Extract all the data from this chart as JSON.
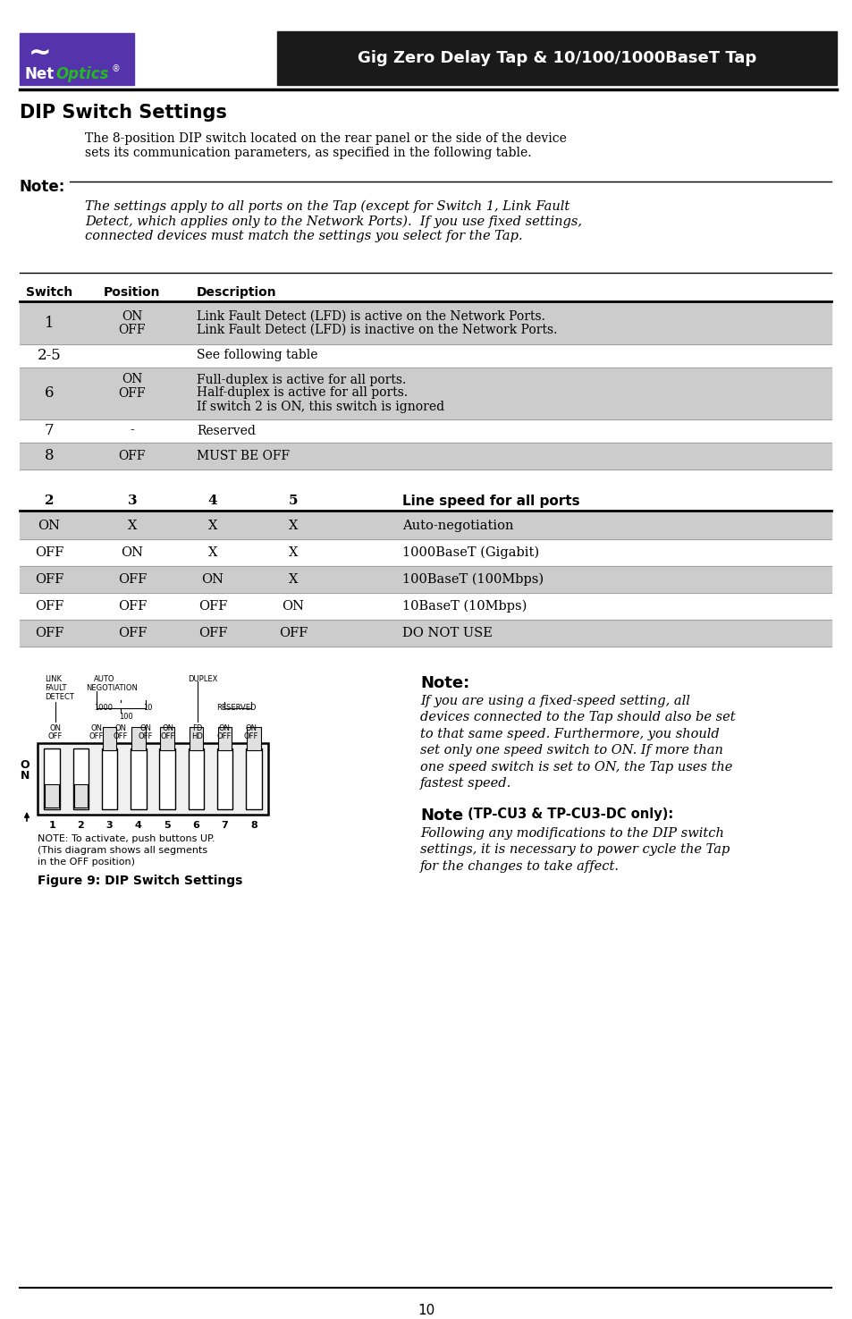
{
  "page_bg": "#ffffff",
  "header_bg": "#1a1a1a",
  "header_text": "Gig Zero Delay Tap & 10/100/1000BaseT Tap",
  "header_text_color": "#ffffff",
  "section_title": "DIP Switch Settings",
  "intro_text": "The 8-position DIP switch located on the rear panel or the side of the device\nsets its communication parameters, as specified in the following table.",
  "note_label": "Note:",
  "note_italic_text": "The settings apply to all ports on the Tap (except for Switch 1, Link Fault\nDetect, which applies only to the Network Ports).  If you use fixed settings,\nconnected devices must match the settings you select for the Tap.",
  "table1_headers": [
    "Switch",
    "Position",
    "Description"
  ],
  "table1_rows": [
    {
      "switch": "1",
      "positions": [
        "ON",
        "OFF"
      ],
      "descriptions": [
        "Link Fault Detect (LFD) is active on the Network Ports.",
        "Link Fault Detect (LFD) is inactive on the Network Ports."
      ],
      "shaded": true
    },
    {
      "switch": "2-5",
      "positions": [
        ""
      ],
      "descriptions": [
        "See following table"
      ],
      "shaded": false
    },
    {
      "switch": "6",
      "positions": [
        "ON",
        "OFF",
        ""
      ],
      "descriptions": [
        "Full-duplex is active for all ports.",
        "Half-duplex is active for all ports.",
        "If switch 2 is ON, this switch is ignored"
      ],
      "shaded": true
    },
    {
      "switch": "7",
      "positions": [
        "-"
      ],
      "descriptions": [
        "Reserved"
      ],
      "shaded": false
    },
    {
      "switch": "8",
      "positions": [
        "OFF"
      ],
      "descriptions": [
        "MUST BE OFF"
      ],
      "shaded": true
    }
  ],
  "table2_headers": [
    "2",
    "3",
    "4",
    "5",
    "Line speed for all ports"
  ],
  "table2_rows": [
    {
      "cols": [
        "ON",
        "X",
        "X",
        "X",
        "Auto-negotiation"
      ],
      "shaded": true
    },
    {
      "cols": [
        "OFF",
        "ON",
        "X",
        "X",
        "1000BaseT (Gigabit)"
      ],
      "shaded": false
    },
    {
      "cols": [
        "OFF",
        "OFF",
        "ON",
        "X",
        "100BaseT (100Mbps)"
      ],
      "shaded": true
    },
    {
      "cols": [
        "OFF",
        "OFF",
        "OFF",
        "ON",
        "10BaseT (10Mbps)"
      ],
      "shaded": false
    },
    {
      "cols": [
        "OFF",
        "OFF",
        "OFF",
        "OFF",
        "DO NOT USE"
      ],
      "shaded": true
    }
  ],
  "note2_label": "Note:",
  "note2_text": "If you are using a fixed-speed setting, all\ndevices connected to the Tap should also be set\nto that same speed. Furthermore, you should\nset only one speed switch to ON. If more than\none speed switch is set to ON, the Tap uses the\nfastest speed.",
  "note3_label": "Note",
  "note3_suffix": " (TP-CU3 & TP-CU3-DC only):",
  "note3_text": "Following any modifications to the DIP switch\nsettings, it is necessary to power cycle the Tap\nfor the changes to take affect.",
  "figure_caption": "Figure 9: DIP Switch Settings",
  "figure_note_line1": "NOTE: To activate, push buttons UP.",
  "figure_note_line2": "(This diagram shows all segments",
  "figure_note_line3": "in the OFF position)",
  "shade_color": "#cccccc",
  "page_number": "10"
}
